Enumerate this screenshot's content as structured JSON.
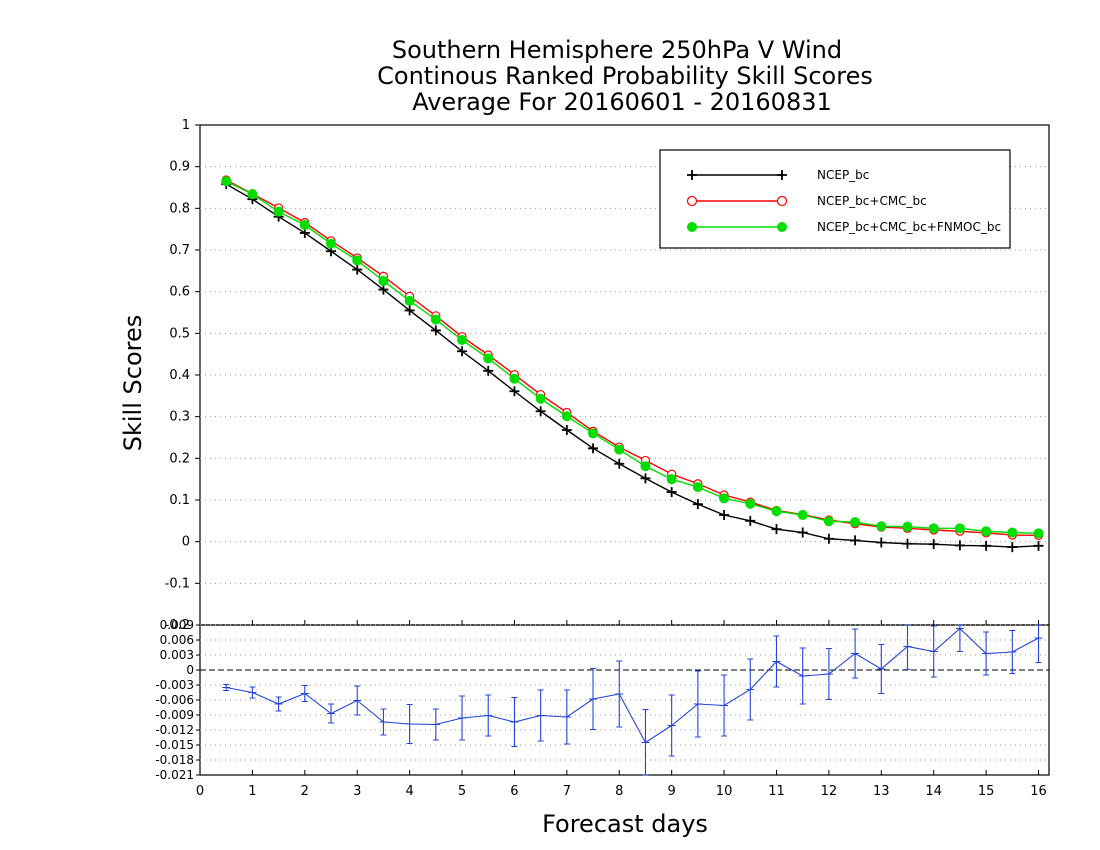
{
  "chart_data": [
    {
      "type": "line",
      "title": [
        "Southern Hemisphere 250hPa V Wind",
        "Continous Ranked Probability Skill Scores",
        "Average For 20160601 - 20160831"
      ],
      "ylabel": "Skill Scores",
      "xlim": [
        0,
        16.2
      ],
      "ylim": [
        -0.2,
        1
      ],
      "yticks": [
        "1",
        "0.9",
        "0.8",
        "0.7",
        "0.6",
        "0.5",
        "0.4",
        "0.3",
        "0.2",
        "0.1",
        "0",
        "-0.1"
      ],
      "grid": true,
      "legend_position": "top-right",
      "x": [
        0.5,
        1,
        1.5,
        2,
        2.5,
        3,
        3.5,
        4,
        4.5,
        5,
        5.5,
        6,
        6.5,
        7,
        7.5,
        8,
        8.5,
        9,
        9.5,
        10,
        10.5,
        11,
        11.5,
        12,
        12.5,
        13,
        13.5,
        14,
        14.5,
        15,
        15.5,
        16
      ],
      "series": [
        {
          "name": "NCEP_bc",
          "color": "#000000",
          "marker": "plus",
          "values": [
            0.858,
            0.822,
            0.78,
            0.741,
            0.697,
            0.653,
            0.605,
            0.555,
            0.507,
            0.457,
            0.41,
            0.361,
            0.313,
            0.268,
            0.224,
            0.187,
            0.152,
            0.119,
            0.09,
            0.064,
            0.05,
            0.03,
            0.022,
            0.007,
            0.003,
            -0.002,
            -0.005,
            -0.006,
            -0.009,
            -0.01,
            -0.013,
            -0.01
          ]
        },
        {
          "name": "NCEP_bc+CMC_bc",
          "color": "#ff0000",
          "marker": "open-circle",
          "values": [
            0.868,
            0.835,
            0.801,
            0.766,
            0.722,
            0.681,
            0.637,
            0.589,
            0.542,
            0.492,
            0.448,
            0.401,
            0.353,
            0.31,
            0.265,
            0.227,
            0.195,
            0.162,
            0.139,
            0.112,
            0.095,
            0.075,
            0.065,
            0.052,
            0.043,
            0.035,
            0.032,
            0.028,
            0.025,
            0.021,
            0.016,
            0.015
          ]
        },
        {
          "name": "NCEP_bc+CMC_bc+FNMOC_bc",
          "color": "#00dd00",
          "marker": "filled-circle",
          "values": [
            0.865,
            0.834,
            0.792,
            0.76,
            0.715,
            0.675,
            0.626,
            0.578,
            0.533,
            0.484,
            0.44,
            0.391,
            0.343,
            0.301,
            0.26,
            0.221,
            0.181,
            0.15,
            0.131,
            0.104,
            0.091,
            0.073,
            0.064,
            0.049,
            0.047,
            0.037,
            0.036,
            0.032,
            0.032,
            0.025,
            0.022,
            0.02
          ]
        }
      ]
    },
    {
      "type": "line",
      "xlabel": "Forecast days",
      "xticks": [
        "0",
        "1",
        "2",
        "3",
        "4",
        "5",
        "6",
        "7",
        "8",
        "9",
        "10",
        "11",
        "12",
        "13",
        "14",
        "15",
        "16"
      ],
      "ylim": [
        -0.021,
        0.009
      ],
      "yticks": [
        "0.009",
        "0.006",
        "0.003",
        "0",
        "-0.003",
        "-0.006",
        "-0.009",
        "-0.012",
        "-0.015",
        "-0.018",
        "-0.021"
      ],
      "grid": true,
      "x": [
        0.5,
        1,
        1.5,
        2,
        2.5,
        3,
        3.5,
        4,
        4.5,
        5,
        5.5,
        6,
        6.5,
        7,
        7.5,
        8,
        8.5,
        9,
        9.5,
        10,
        10.5,
        11,
        11.5,
        12,
        12.5,
        13,
        13.5,
        14,
        14.5,
        15,
        15.5,
        16
      ],
      "series": [
        {
          "color": "#2244dd",
          "marker": "error-bar",
          "values": [
            -0.0035,
            -0.0045,
            -0.0068,
            -0.0047,
            -0.0087,
            -0.0061,
            -0.0104,
            -0.0108,
            -0.0109,
            -0.0096,
            -0.0091,
            -0.0104,
            -0.0091,
            -0.0094,
            -0.0058,
            -0.0048,
            -0.0145,
            -0.0111,
            -0.0068,
            -0.0071,
            -0.0039,
            0.0017,
            -0.0012,
            -0.0008,
            0.0033,
            0.0002,
            0.0047,
            0.0037,
            0.0083,
            0.0033,
            0.0036,
            0.0064
          ],
          "error": [
            0.0006,
            0.0011,
            0.0014,
            0.0016,
            0.0019,
            0.0029,
            0.0026,
            0.0039,
            0.0031,
            0.0044,
            0.0041,
            0.0049,
            0.0051,
            0.0054,
            0.0061,
            0.0066,
            0.0066,
            0.0061,
            0.0066,
            0.0061,
            0.0061,
            0.0051,
            0.0056,
            0.0051,
            0.0049,
            0.0049,
            0.0046,
            0.0051,
            0.0046,
            0.0043,
            0.0043,
            0.0049
          ]
        }
      ]
    }
  ]
}
